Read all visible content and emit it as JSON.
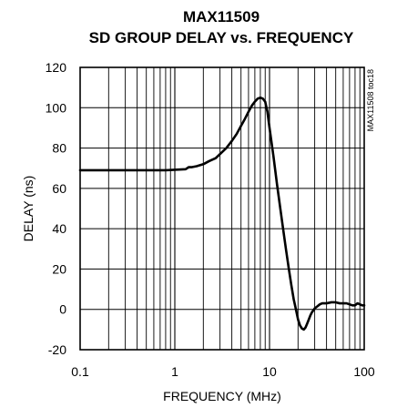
{
  "chart_data": {
    "type": "line",
    "title": "MAX11509",
    "subtitle": "SD GROUP DELAY vs. FREQUENCY",
    "xlabel": "FREQUENCY (MHz)",
    "ylabel": "DELAY (ns)",
    "figure_code": "MAX11508 toc18",
    "x_scale": "log",
    "xlim": [
      0.1,
      100
    ],
    "ylim": [
      -20,
      120
    ],
    "x_tick_labels": [
      "0.1",
      "1",
      "10",
      "100"
    ],
    "y_tick_labels": [
      "-20",
      "0",
      "20",
      "40",
      "60",
      "80",
      "100",
      "120"
    ],
    "grid": true,
    "series": [
      {
        "x": [
          0.1,
          0.3,
          0.8,
          1.3,
          1.4,
          1.5,
          1.7,
          2.0,
          2.3,
          2.7,
          3.0,
          3.5,
          4.0,
          4.5,
          5.0,
          5.5,
          6.0,
          6.5,
          7.0,
          7.5,
          8.0,
          8.5,
          9.0,
          9.5,
          10.0,
          11.0,
          12.0,
          13.0,
          14.0,
          15.0,
          16.0,
          17.0,
          18.0,
          19.0,
          20.0,
          21.0,
          22.0,
          23.0,
          24.0,
          25.0,
          26.0,
          27.0,
          28.0,
          29.0,
          30.0,
          32.0,
          34.0,
          36.0,
          40.0,
          45.0,
          50.0,
          55.0,
          60.0,
          65.0,
          70.0,
          75.0,
          80.0,
          85.0,
          90.0,
          95.0,
          100.0
        ],
        "y": [
          69,
          69,
          69,
          69.5,
          70.5,
          70.5,
          71,
          72,
          73.5,
          75,
          77,
          80,
          83.5,
          87,
          91,
          94.5,
          98,
          101,
          103,
          104.5,
          105,
          104.5,
          103,
          98,
          90,
          76,
          62,
          50,
          39,
          29,
          20,
          12,
          5,
          0,
          -5,
          -8,
          -9.5,
          -10,
          -9,
          -7,
          -5,
          -3,
          -1.5,
          -0.5,
          0.5,
          1.5,
          2.5,
          3,
          3,
          3.5,
          3.5,
          3,
          3,
          3,
          2.5,
          2,
          2,
          3,
          2.5,
          2,
          2
        ]
      }
    ]
  }
}
